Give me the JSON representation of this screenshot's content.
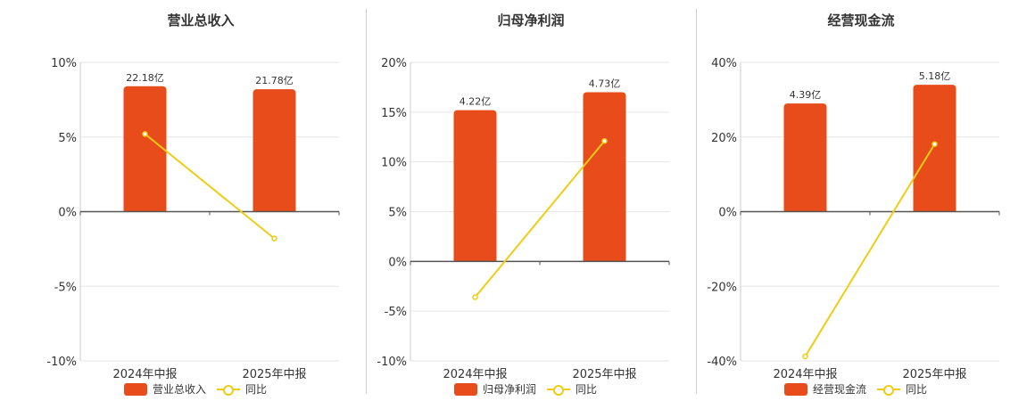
{
  "colors": {
    "bar": "#e84c1a",
    "line": "#f0cc14",
    "grid": "#e6e6e6",
    "axis": "#555555"
  },
  "chart_data": [
    {
      "type": "bar",
      "title": "营业总收入",
      "categories": [
        "2024年中报",
        "2025年中报"
      ],
      "series": [
        {
          "name": "营业总收入",
          "type": "bar",
          "values": [
            8.4,
            8.2
          ],
          "labels": [
            "22.18亿",
            "21.78亿"
          ]
        },
        {
          "name": "同比",
          "type": "line",
          "values": [
            5.2,
            -1.8
          ]
        }
      ],
      "yticks": [
        "10%",
        "5%",
        "0%",
        "-5%",
        "-10%"
      ],
      "ylim": [
        -10,
        10
      ],
      "grid": true,
      "legend": "bottom"
    },
    {
      "type": "bar",
      "title": "归母净利润",
      "categories": [
        "2024年中报",
        "2025年中报"
      ],
      "series": [
        {
          "name": "归母净利润",
          "type": "bar",
          "values": [
            15.2,
            17.0
          ],
          "labels": [
            "4.22亿",
            "4.73亿"
          ]
        },
        {
          "name": "同比",
          "type": "line",
          "values": [
            -3.6,
            12.1
          ]
        }
      ],
      "yticks": [
        "20%",
        "15%",
        "10%",
        "5%",
        "0%",
        "-5%",
        "-10%"
      ],
      "ylim": [
        -10,
        20
      ],
      "grid": true,
      "legend": "bottom"
    },
    {
      "type": "bar",
      "title": "经营现金流",
      "categories": [
        "2024年中报",
        "2025年中报"
      ],
      "series": [
        {
          "name": "经营现金流",
          "type": "bar",
          "values": [
            29,
            34
          ],
          "labels": [
            "4.39亿",
            "5.18亿"
          ]
        },
        {
          "name": "同比",
          "type": "line",
          "values": [
            -38.8,
            18.1
          ]
        }
      ],
      "yticks": [
        "40%",
        "20%",
        "0%",
        "-20%",
        "-40%"
      ],
      "ylim": [
        -40,
        40
      ],
      "grid": true,
      "legend": "bottom"
    }
  ]
}
